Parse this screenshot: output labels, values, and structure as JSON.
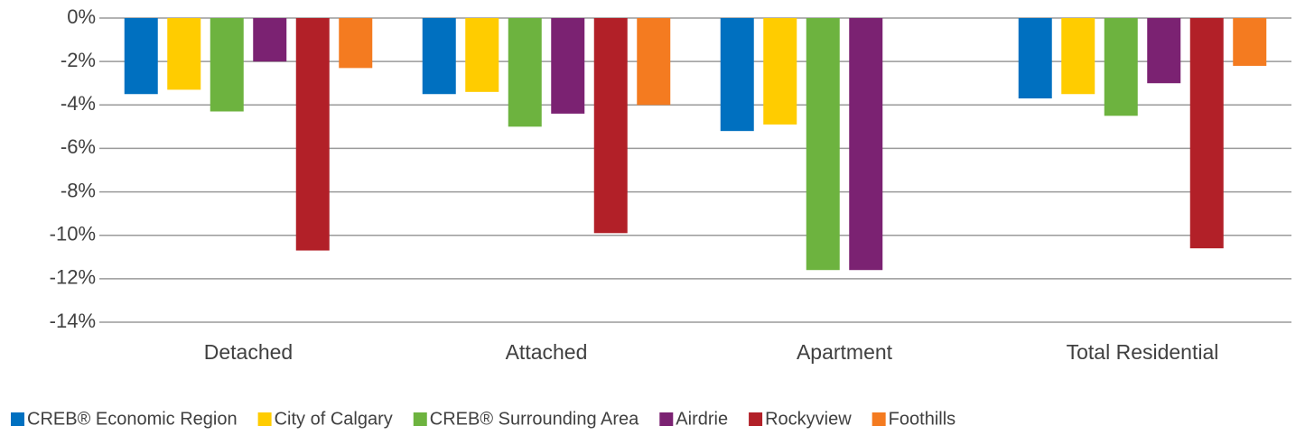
{
  "chart_data": {
    "type": "bar",
    "categories": [
      "Detached",
      "Attached",
      "Apartment",
      "Total Residential"
    ],
    "series": [
      {
        "name": "CREB® Economic Region",
        "color": "#0070c0",
        "values": [
          -3.5,
          -3.5,
          -5.2,
          -3.7
        ]
      },
      {
        "name": "City of Calgary",
        "color": "#ffcc00",
        "values": [
          -3.3,
          -3.4,
          -4.9,
          -3.5
        ]
      },
      {
        "name": "CREB® Surrounding Area",
        "color": "#6db33f",
        "values": [
          -4.3,
          -5.0,
          -11.6,
          -4.5
        ]
      },
      {
        "name": "Airdrie",
        "color": "#7b2272",
        "values": [
          -2.0,
          -4.4,
          -11.6,
          -3.0
        ]
      },
      {
        "name": "Rockyview",
        "color": "#b22028",
        "values": [
          -10.7,
          -9.9,
          null,
          -10.6
        ]
      },
      {
        "name": "Foothills",
        "color": "#f47b20",
        "values": [
          -2.3,
          -4.0,
          null,
          -2.2
        ]
      }
    ],
    "ylim": [
      -14,
      0
    ],
    "yticks": [
      {
        "value": 0,
        "label": "0%"
      },
      {
        "value": -2,
        "label": "-2%"
      },
      {
        "value": -4,
        "label": "-4%"
      },
      {
        "value": -6,
        "label": "-6%"
      },
      {
        "value": -8,
        "label": "-8%"
      },
      {
        "value": -10,
        "label": "-10%"
      },
      {
        "value": -12,
        "label": "-12%"
      },
      {
        "value": -14,
        "label": "-14%"
      }
    ],
    "grid": true,
    "legend": "bottom"
  }
}
